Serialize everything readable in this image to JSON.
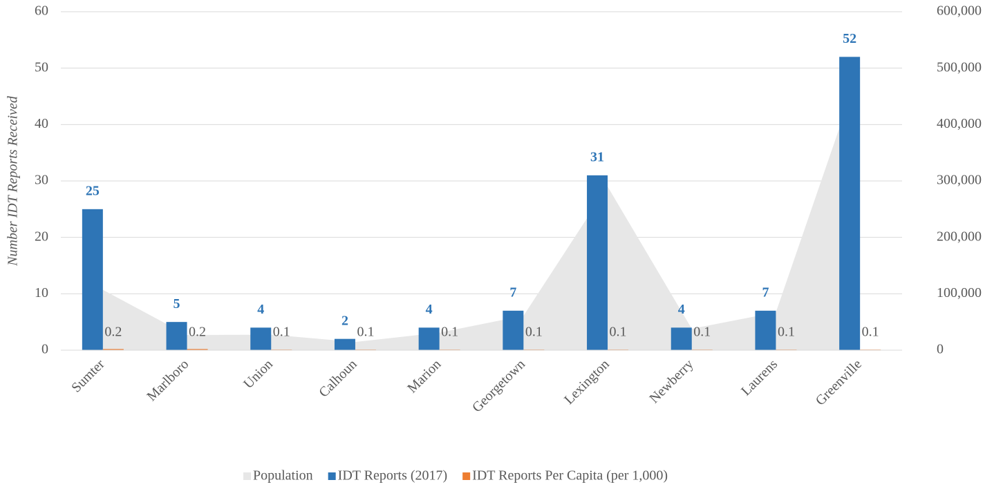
{
  "chart_data": {
    "type": "bar",
    "y_label": "Number IDT Reports Received",
    "categories": [
      "Sumter",
      "Marlboro",
      "Union",
      "Calhoun",
      "Marion",
      "Georgetown",
      "Lexington",
      "Newberry",
      "Laurens",
      "Greenville"
    ],
    "series": [
      {
        "name": "Population",
        "type": "area",
        "axis": "y2",
        "color": "#e7e7e7",
        "values": [
          107000,
          27000,
          27500,
          14500,
          31000,
          61000,
          290000,
          38000,
          67000,
          500000
        ]
      },
      {
        "name": "IDT Reports (2017)",
        "type": "bar",
        "color": "#2e75b6",
        "data_labels": true,
        "values": [
          25,
          5,
          4,
          2,
          4,
          7,
          31,
          4,
          7,
          52
        ]
      },
      {
        "name": "IDT Reports Per Capita (per 1,000)",
        "type": "bar",
        "color": "#ed7d31",
        "data_labels": true,
        "values": [
          0.2,
          0.2,
          0.1,
          0.1,
          0.1,
          0.1,
          0.1,
          0.1,
          0.1,
          0.1
        ]
      }
    ],
    "ylim": [
      0,
      60
    ],
    "yticks": [
      0,
      10,
      20,
      30,
      40,
      50,
      60
    ],
    "y2lim": [
      0,
      600000
    ],
    "y2ticks": [
      0,
      {
        "value": 100000,
        "label": "100,000"
      },
      {
        "value": 200000,
        "label": "200,000"
      },
      {
        "value": 300000,
        "label": "300,000"
      },
      {
        "value": 400000,
        "label": "400,000"
      },
      {
        "value": 500000,
        "label": "500,000"
      },
      {
        "value": 600000,
        "label": "600,000"
      }
    ],
    "grid": true,
    "legend": "bottom"
  }
}
